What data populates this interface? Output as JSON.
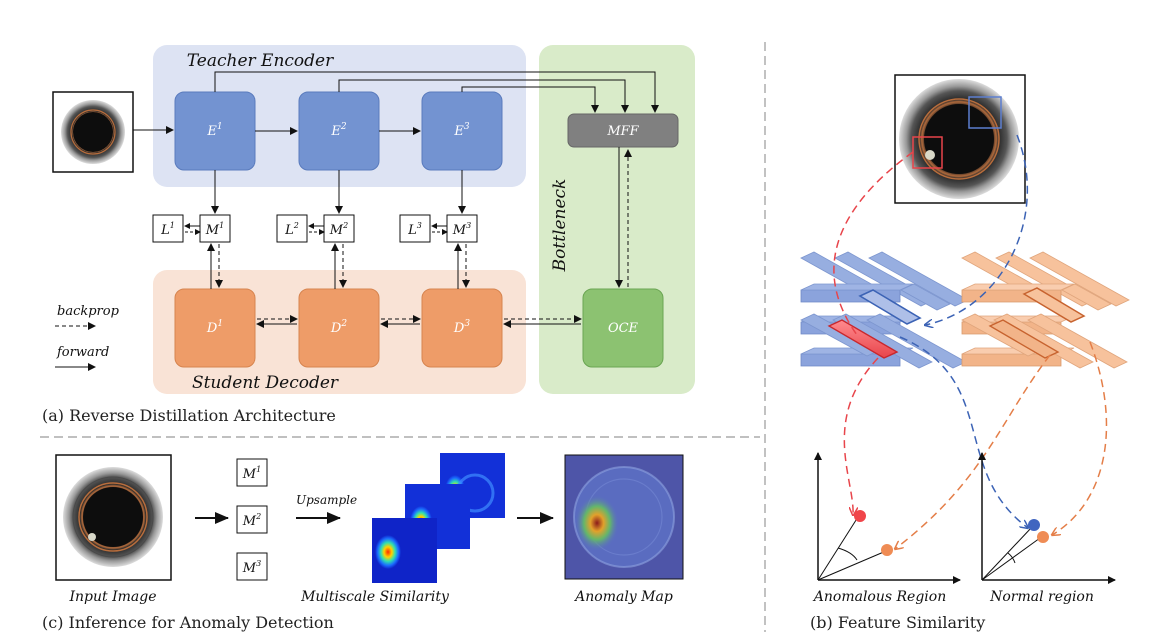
{
  "panel_a": {
    "teacher_title": "Teacher Encoder",
    "student_title": "Student Decoder",
    "bottleneck_title": "Bottleneck",
    "encoders": [
      {
        "base": "E",
        "sup": "1"
      },
      {
        "base": "E",
        "sup": "2"
      },
      {
        "base": "E",
        "sup": "3"
      }
    ],
    "decoders": [
      {
        "base": "D",
        "sup": "1"
      },
      {
        "base": "D",
        "sup": "2"
      },
      {
        "base": "D",
        "sup": "3"
      }
    ],
    "m_blocks": [
      {
        "base": "M",
        "sup": "1"
      },
      {
        "base": "M",
        "sup": "2"
      },
      {
        "base": "M",
        "sup": "3"
      }
    ],
    "l_blocks": [
      {
        "base": "L",
        "sup": "1"
      },
      {
        "base": "L",
        "sup": "2"
      },
      {
        "base": "L",
        "sup": "3"
      }
    ],
    "mff": "MFF",
    "oce": "OCE",
    "legend_backprop": "backprop",
    "legend_forward": "forward",
    "caption": "(a) Reverse Distillation Architecture"
  },
  "panel_c": {
    "m_blocks": [
      {
        "base": "M",
        "sup": "1"
      },
      {
        "base": "M",
        "sup": "2"
      },
      {
        "base": "M",
        "sup": "3"
      }
    ],
    "upsample": "Upsample",
    "input_label": "Input Image",
    "multiscale_label": "Multiscale Similarity",
    "anomaly_label": "Anomaly Map",
    "caption": "(c) Inference for Anomaly Detection"
  },
  "panel_b": {
    "anomalous_label": "Anomalous Region",
    "normal_label": "Normal region",
    "caption": "(b) Feature Similarity"
  },
  "colors": {
    "teacher_bg": "#dde3f3",
    "encoder": "#7393d1",
    "student_bg": "#f9e3d6",
    "decoder": "#ee9c68",
    "bottleneck_bg": "#d9ebc9",
    "oce": "#8cc271",
    "mff": "#808080",
    "red": "#e8454b",
    "blue": "#3c63b5",
    "orange": "#e47e48"
  }
}
